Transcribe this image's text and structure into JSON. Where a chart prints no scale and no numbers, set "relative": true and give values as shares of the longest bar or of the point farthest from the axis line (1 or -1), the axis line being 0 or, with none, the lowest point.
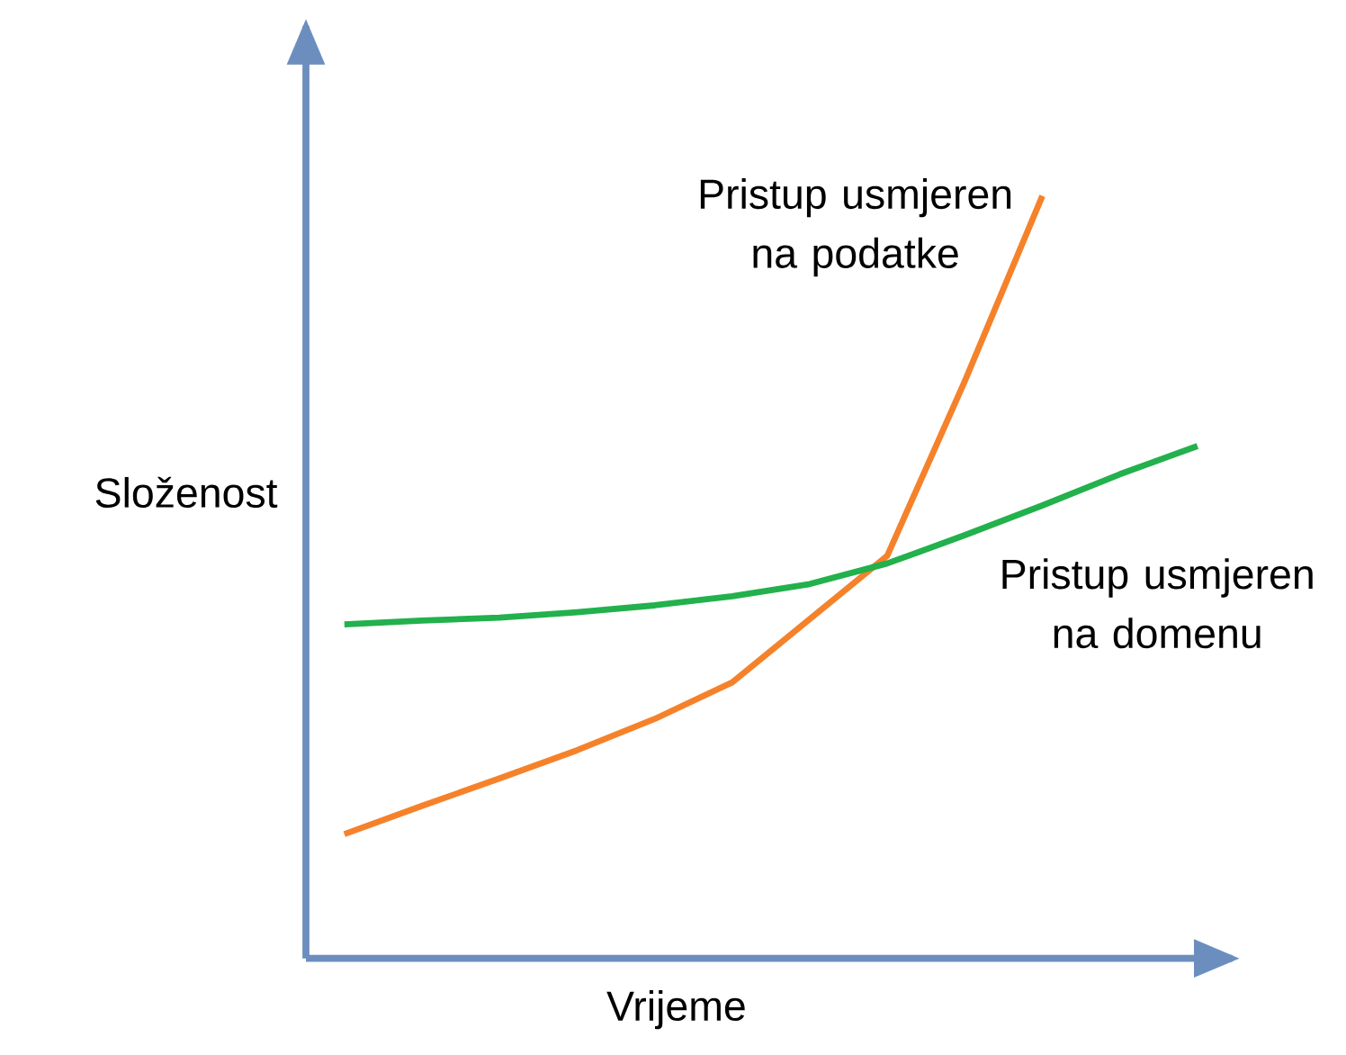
{
  "chart_data": {
    "type": "line",
    "relative": true,
    "xlabel": "Vrijeme",
    "ylabel": "Složenost",
    "categories": [
      null,
      null,
      null,
      null,
      null,
      null,
      null,
      null,
      null,
      null,
      null,
      null
    ],
    "series": [
      {
        "name": "Pristup usmjeren na podatke",
        "color": "#f5822a",
        "values": [
          0.163,
          0.2,
          0.236,
          0.273,
          0.314,
          0.362,
          0.445,
          0.528,
          0.757,
          1,
          null,
          null
        ]
      },
      {
        "name": "Pristup usmjeren na domenu",
        "color": "#22b14c",
        "values": [
          0.438,
          0.443,
          0.447,
          0.454,
          0.463,
          0.475,
          0.491,
          0.518,
          0.555,
          0.594,
          0.635,
          0.672
        ]
      }
    ]
  }
}
